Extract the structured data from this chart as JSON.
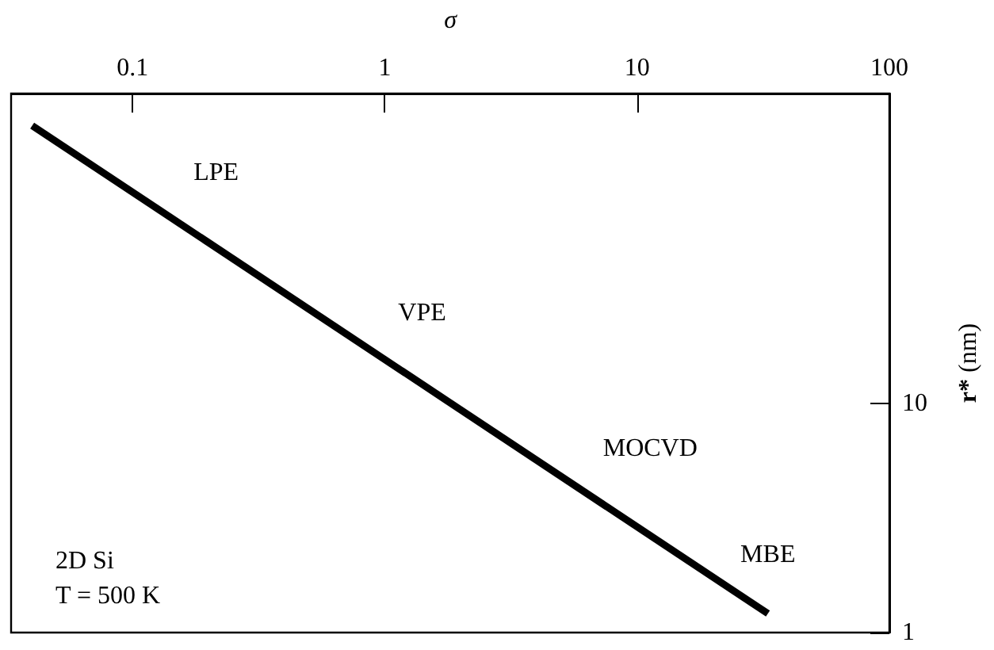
{
  "chart_data": {
    "type": "line",
    "xlabel": "σ",
    "ylabel": "r* (nm)",
    "log": "xy",
    "xlim": [
      0.033,
      100
    ],
    "xticks": [
      0.1,
      1,
      10,
      100
    ],
    "ylim": [
      1,
      225
    ],
    "yticks": [
      1,
      10
    ],
    "marker": "none",
    "line_style": "solid",
    "series": [
      {
        "color": "#000000",
        "x": [
          0.04,
          33
        ],
        "values": [
          163,
          1.21
        ]
      }
    ],
    "annotations": [
      "LPE",
      "VPE",
      "MOCVD",
      "MBE",
      "2D Si",
      "T = 500 K"
    ]
  }
}
